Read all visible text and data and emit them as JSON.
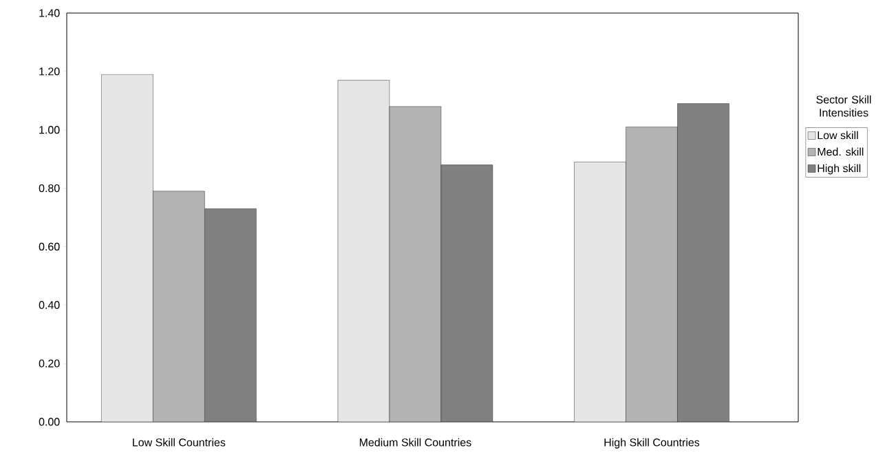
{
  "chart_data": {
    "type": "bar",
    "categories": [
      "Low Skill Countries",
      "Medium Skill Countries",
      "High Skill Countries"
    ],
    "series": [
      {
        "name": "Low skill",
        "color": "#e6e6e6",
        "values": [
          1.19,
          1.17,
          0.89
        ]
      },
      {
        "name": "Med. skill",
        "color": "#b3b3b3",
        "values": [
          0.79,
          1.08,
          1.01
        ]
      },
      {
        "name": "High skill",
        "color": "#808080",
        "values": [
          0.73,
          0.88,
          1.09
        ]
      }
    ],
    "legend_title": "Sector Skill Intensities",
    "legend": "right",
    "ylim": [
      0,
      1.4
    ],
    "yticks": [
      {
        "value": 0,
        "label": "0.00"
      },
      {
        "value": 0.2,
        "label": "0.20"
      },
      {
        "value": 0.4,
        "label": "0.40"
      },
      {
        "value": 0.6,
        "label": "0.60"
      },
      {
        "value": 0.8,
        "label": "0.80"
      },
      {
        "value": 1.0,
        "label": "1.00"
      },
      {
        "value": 1.2,
        "label": "1.20"
      },
      {
        "value": 1.4,
        "label": "1.40"
      }
    ]
  }
}
